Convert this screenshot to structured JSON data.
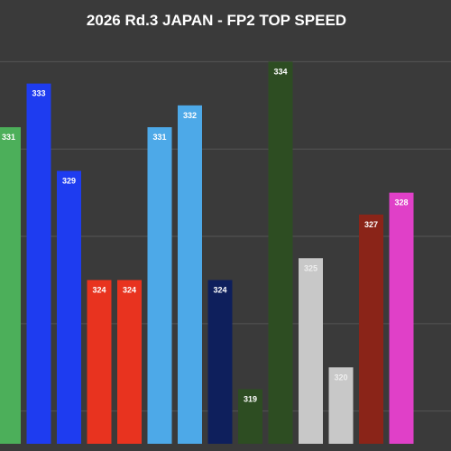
{
  "chart_data": {
    "type": "bar",
    "title": "2026 Rd.3 JAPAN - FP2 TOP SPEED",
    "ylim": [
      316.5,
      336
    ],
    "gridlines": [
      318,
      322,
      326,
      330,
      334
    ],
    "grid": true,
    "legend": "none",
    "background": "#3a3a3a",
    "gridline_color": "#555555",
    "bars": [
      {
        "value": 331,
        "color": "#4caf5a",
        "label_color": "#ffffff"
      },
      {
        "value": 333,
        "color": "#1e3cf0",
        "label_color": "#ffffff"
      },
      {
        "value": 329,
        "color": "#1e3cf0",
        "label_color": "#ffffff"
      },
      {
        "value": 324,
        "color": "#e8331f",
        "label_color": "#ffffff"
      },
      {
        "value": 324,
        "color": "#e8331f",
        "label_color": "#ffffff"
      },
      {
        "value": 331,
        "color": "#4da9e8",
        "label_color": "#ffffff"
      },
      {
        "value": 332,
        "color": "#4da9e8",
        "label_color": "#ffffff"
      },
      {
        "value": 324,
        "color": "#0e1f5c",
        "label_color": "#ffffff"
      },
      {
        "value": 319,
        "color": "#2d4d22",
        "label_color": "#ffffff"
      },
      {
        "value": 334,
        "color": "#2d4d22",
        "label_color": "#ffffff"
      },
      {
        "value": 325,
        "color": "#c8c8c8",
        "label_color": "#eeeeee"
      },
      {
        "value": 320,
        "color": "#c8c8c8",
        "label_color": "#eeeeee"
      },
      {
        "value": 327,
        "color": "#8a2418",
        "label_color": "#ffffff"
      },
      {
        "value": 328,
        "color": "#e040c8",
        "label_color": "#ffffff"
      }
    ]
  }
}
